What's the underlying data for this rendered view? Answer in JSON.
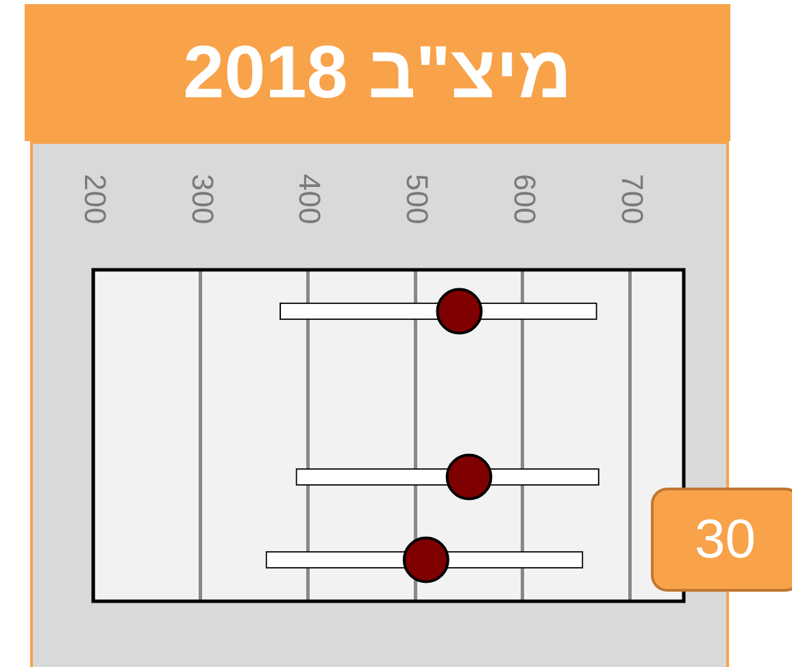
{
  "chart_data": {
    "type": "bar",
    "title": "מיצ\"ב 2018",
    "orientation": "horizontal",
    "categories": [
      null,
      null,
      null,
      null
    ],
    "series": [
      {
        "type": "bar",
        "color": "#ffffff",
        "base": [
          374,
          null,
          389,
          361
        ],
        "values": [
          295,
          null,
          282,
          295
        ]
      },
      {
        "type": "scatter",
        "color": "#7f0000",
        "values": [
          541,
          null,
          550,
          510
        ]
      }
    ],
    "xlim": [
      200,
      750
    ],
    "xticks": [
      200,
      300,
      400,
      500,
      600,
      700
    ],
    "grid": "x",
    "tick_labels": "x",
    "marker": "circle",
    "annotations": [
      "30"
    ]
  }
}
